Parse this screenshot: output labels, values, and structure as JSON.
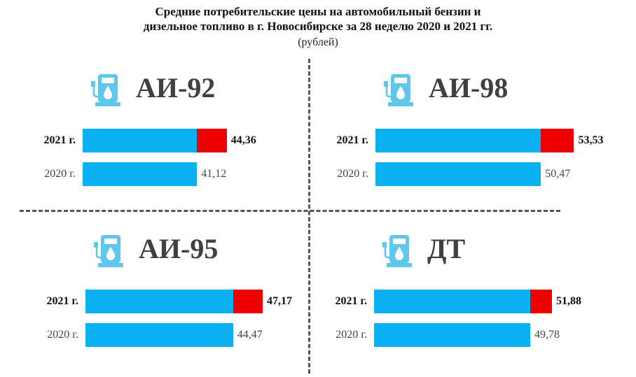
{
  "header": {
    "title_line1": "Средние потребительские цены на автомобильный бензин и",
    "title_line2": "дизельное топливо в г. Новосибирске за 28 неделю 2020 и 2021 гг.",
    "subtitle": "(рублей)"
  },
  "colors": {
    "base_bar": "#0ab0f0",
    "increase_bar": "#ee0000",
    "icon": "#5fc6ee"
  },
  "chart_data": {
    "type": "bar",
    "orientation": "horizontal",
    "stacked_increase": true,
    "title": "Средние потребительские цены на автомобильный бензин и дизельное топливо в г. Новосибирске за 28 неделю 2020 и 2021 гг.",
    "subtitle": "(рублей)",
    "panels": [
      {
        "fuel": "АИ-92",
        "icon": "fuel-pump-icon",
        "rows": [
          {
            "year_label": "2021 г.",
            "value": 44.36,
            "value_label": "44,36"
          },
          {
            "year_label": "2020 г.",
            "value": 41.12,
            "value_label": "41,12"
          }
        ]
      },
      {
        "fuel": "АИ-98",
        "icon": "fuel-pump-icon",
        "rows": [
          {
            "year_label": "2021 г.",
            "value": 53.53,
            "value_label": "53,53"
          },
          {
            "year_label": "2020 г.",
            "value": 50.47,
            "value_label": "50,47"
          }
        ]
      },
      {
        "fuel": "АИ-95",
        "icon": "fuel-pump-icon",
        "rows": [
          {
            "year_label": "2021 г.",
            "value": 47.17,
            "value_label": "47,17"
          },
          {
            "year_label": "2020 г.",
            "value": 44.47,
            "value_label": "44,47"
          }
        ]
      },
      {
        "fuel": "ДТ",
        "icon": "fuel-pump-icon",
        "rows": [
          {
            "year_label": "2021 г.",
            "value": 51.88,
            "value_label": "51,88"
          },
          {
            "year_label": "2020 г.",
            "value": 49.78,
            "value_label": "49,78"
          }
        ]
      }
    ]
  }
}
